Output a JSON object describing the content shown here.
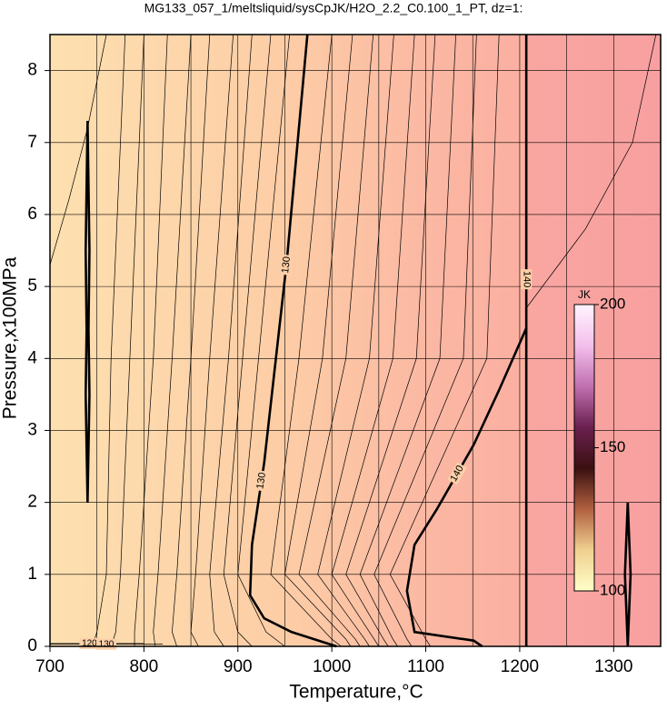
{
  "chart_data": {
    "type": "contour",
    "title": "MG133_057_1/meltsliquid/sysCpJK/H2O_2.2_C0.100_1_PT, dz=1:",
    "xlabel": "Temperature,°C",
    "ylabel": "Pressure,x100MPa",
    "xlim": [
      700,
      1350
    ],
    "ylim": [
      0,
      8.5
    ],
    "xticks": [
      700,
      800,
      900,
      1000,
      1100,
      1200,
      1300
    ],
    "xminorticks": [
      750,
      850,
      950,
      1050,
      1150,
      1250
    ],
    "yticks": [
      0,
      1,
      2,
      3,
      4,
      5,
      6,
      7,
      8
    ],
    "grid": true,
    "background": [
      {
        "x": 700,
        "color": "#fde0b0"
      },
      {
        "x": 950,
        "color": "#fdcda6"
      },
      {
        "x": 1100,
        "color": "#fbb8a3"
      },
      {
        "x": 1205,
        "color": "#fbafa1"
      },
      {
        "x": 1208,
        "color": "#f9a6a1"
      },
      {
        "x": 1350,
        "color": "#f8a0a0"
      }
    ],
    "contours": [
      {
        "level": 130,
        "bold": true,
        "x": [
          974,
          952,
          928,
          915,
          913,
          928,
          957,
          1005
        ],
        "y": [
          8.5,
          5.34,
          2.55,
          1.41,
          0.71,
          0.39,
          0.2,
          0
        ]
      },
      {
        "level": 140,
        "bold": true,
        "x": [
          1207,
          1207
        ],
        "y": [
          8.5,
          0
        ]
      },
      {
        "level": 140,
        "bold": true,
        "x": [
          1207,
          1178,
          1151,
          1112,
          1088,
          1080,
          1088,
          1151,
          1160
        ],
        "y": [
          4.42,
          3.56,
          2.8,
          1.91,
          1.41,
          0.77,
          0.2,
          0.08,
          0
        ]
      },
      {
        "bold": true,
        "x": [
          740,
          742,
          741,
          742,
          740,
          738,
          739,
          738,
          740
        ],
        "y": [
          2.0,
          3.5,
          4.4,
          5.5,
          7.3,
          5.5,
          4.4,
          3.5,
          2.0
        ]
      },
      {
        "bold": true,
        "x": [
          1315,
          1318,
          1315,
          1312,
          1315
        ],
        "y": [
          0,
          1,
          2,
          1,
          0
        ]
      },
      {
        "level": 120,
        "bold": false,
        "x": [
          700,
          800
        ],
        "y": [
          0.04,
          0.04
        ]
      },
      {
        "level": 130,
        "bold": false,
        "x": [
          700,
          820
        ],
        "y": [
          0.03,
          0.03
        ]
      },
      {
        "bold": false,
        "x": [
          780,
          765,
          760,
          750,
          745
        ],
        "y": [
          8.5,
          4,
          1,
          0.2,
          0
        ]
      },
      {
        "bold": false,
        "x": [
          800,
          785,
          775,
          770,
          765
        ],
        "y": [
          8.5,
          4,
          1,
          0.2,
          0
        ]
      },
      {
        "bold": false,
        "x": [
          825,
          810,
          795,
          790,
          790
        ],
        "y": [
          8.5,
          4,
          1,
          0.2,
          0
        ]
      },
      {
        "bold": false,
        "x": [
          850,
          830,
          815,
          810,
          812
        ],
        "y": [
          8.5,
          4,
          1,
          0.2,
          0
        ]
      },
      {
        "bold": false,
        "x": [
          870,
          850,
          835,
          830,
          835
        ],
        "y": [
          8.5,
          4,
          1,
          0.2,
          0
        ]
      },
      {
        "bold": false,
        "x": [
          895,
          870,
          855,
          850,
          858
        ],
        "y": [
          8.5,
          4,
          1,
          0.2,
          0
        ]
      },
      {
        "bold": false,
        "x": [
          915,
          890,
          870,
          875,
          885
        ],
        "y": [
          8.5,
          4,
          1,
          0.2,
          0
        ]
      },
      {
        "bold": false,
        "x": [
          935,
          905,
          885,
          900,
          915
        ],
        "y": [
          8.5,
          4,
          1,
          0.2,
          0
        ]
      },
      {
        "bold": false,
        "x": [
          955,
          922,
          900,
          930,
          950
        ],
        "y": [
          8.5,
          4,
          1,
          0.2,
          0
        ]
      },
      {
        "bold": false,
        "x": [
          1000,
          965,
          935,
          1000,
          1010
        ],
        "y": [
          8.5,
          4,
          1,
          0.1,
          0
        ]
      },
      {
        "bold": false,
        "x": [
          1022,
          990,
          950,
          1015,
          1020
        ],
        "y": [
          8.5,
          4,
          1,
          0.1,
          0
        ]
      },
      {
        "bold": false,
        "x": [
          1044,
          1015,
          965,
          1025,
          1030
        ],
        "y": [
          8.5,
          4,
          1,
          0.1,
          0
        ]
      },
      {
        "bold": false,
        "x": [
          1066,
          1040,
          985,
          1035,
          1040
        ],
        "y": [
          8.5,
          4,
          1,
          0.1,
          0
        ]
      },
      {
        "bold": false,
        "x": [
          1088,
          1065,
          1000,
          1045,
          1050
        ],
        "y": [
          8.5,
          4,
          1,
          0.1,
          0
        ]
      },
      {
        "bold": false,
        "x": [
          1110,
          1090,
          1015,
          1055,
          1060
        ],
        "y": [
          8.5,
          4,
          1,
          0.1,
          0
        ]
      },
      {
        "bold": false,
        "x": [
          1132,
          1115,
          1030,
          1065,
          1070
        ],
        "y": [
          8.5,
          4,
          1,
          0.1,
          0
        ]
      },
      {
        "bold": false,
        "x": [
          1154,
          1140,
          1045,
          1080,
          1085
        ],
        "y": [
          8.5,
          4,
          1,
          0.1,
          0
        ]
      },
      {
        "bold": false,
        "x": [
          1178,
          1165,
          1062,
          1100,
          1105
        ],
        "y": [
          8.5,
          4,
          1,
          0.1,
          0
        ]
      },
      {
        "bold": false,
        "x": [
          1207,
          1270,
          1320,
          1345
        ],
        "y": [
          4.7,
          5.8,
          7.0,
          8.5
        ]
      },
      {
        "bold": false,
        "x": [
          700,
          720,
          740,
          760
        ],
        "y": [
          5.3,
          6.2,
          7.2,
          8.5
        ]
      }
    ],
    "colorbar": {
      "label": "JK",
      "lim": [
        100,
        200
      ],
      "ticks": [
        100,
        150,
        200
      ],
      "colors": [
        "#ffffc8",
        "#f0d090",
        "#b06040",
        "#3a1010",
        "#6a2050",
        "#c070b0",
        "#f4c0ec",
        "#fff4ff"
      ]
    }
  }
}
